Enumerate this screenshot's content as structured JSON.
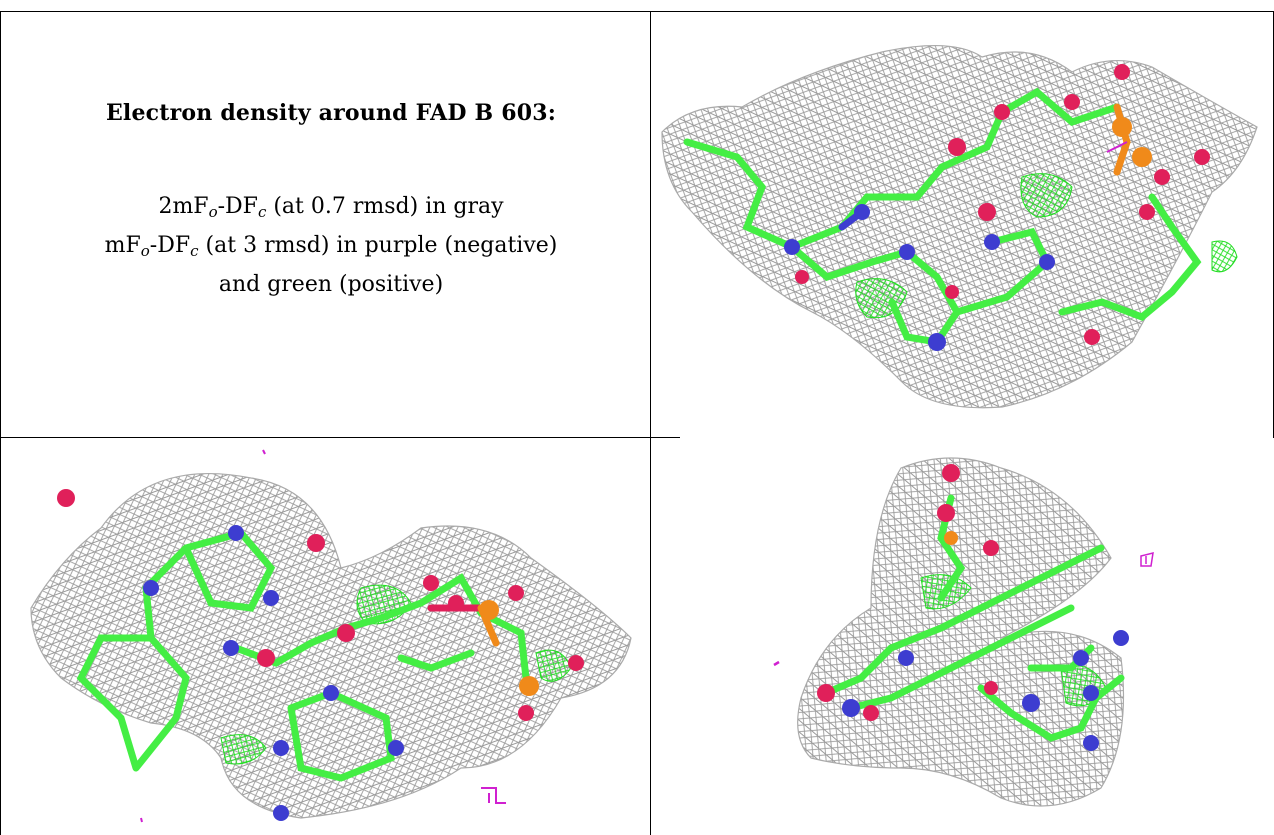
{
  "caption": {
    "title": "Electron density around FAD B 603:",
    "line1": {
      "a": "2mF",
      "a_sub": "o",
      "b": "-DF",
      "b_sub": "c",
      "rest": " (at 0.7 rmsd) in gray"
    },
    "line2": {
      "a": "mF",
      "a_sub": "o",
      "b": "-DF",
      "b_sub": "c",
      "rest": " (at 3 rmsd) in purple (negative)"
    },
    "line3": "and green (positive)"
  },
  "colors": {
    "mesh_gray": "#9a9a9a",
    "carbon_green": "#44ee44",
    "nitrogen_blue": "#3d3dd0",
    "oxygen_red": "#e0205a",
    "phosphorus_orange": "#f08a1a",
    "negative_purple": "#d020d0",
    "positive_green": "#22dd22"
  },
  "panels": [
    {
      "name": "view-top-right"
    },
    {
      "name": "view-bottom-left"
    },
    {
      "name": "view-bottom-right"
    }
  ]
}
